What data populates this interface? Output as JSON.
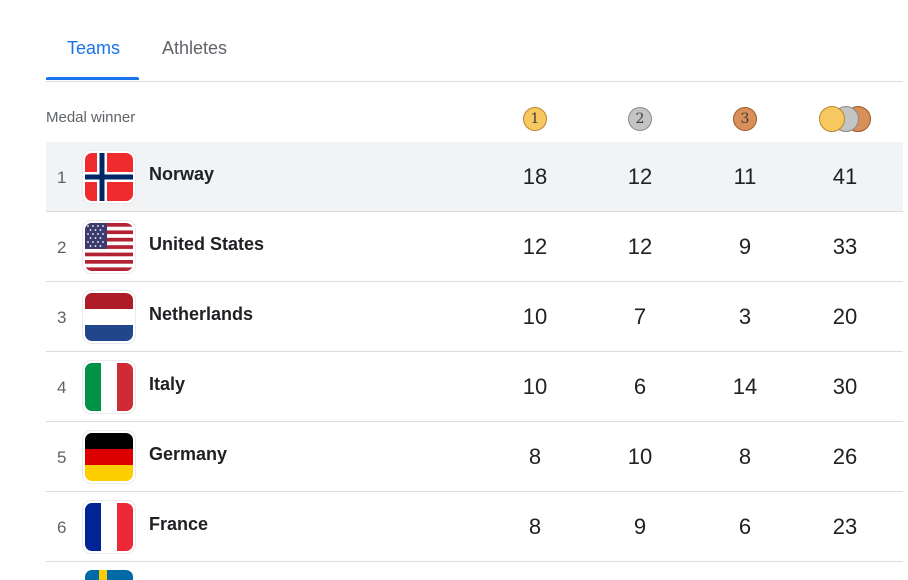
{
  "tabs": [
    {
      "label": "Teams",
      "selected": true
    },
    {
      "label": "Athletes",
      "selected": false
    }
  ],
  "header": {
    "label": "Medal winner",
    "gold_icon_text": "1",
    "silver_icon_text": "2",
    "bronze_icon_text": "3"
  },
  "colors": {
    "accent": "#1a73e8",
    "gold": "#f6c85f",
    "silver": "#c4c4c4",
    "bronze": "#d98f5a",
    "highlight_row": "#f1f3f4"
  },
  "rows": [
    {
      "rank": "1",
      "country": "Norway",
      "flag": "norway-flag",
      "gold": "18",
      "silver": "12",
      "bronze": "11",
      "total": "41"
    },
    {
      "rank": "2",
      "country": "United States",
      "flag": "usa-flag",
      "gold": "12",
      "silver": "12",
      "bronze": "9",
      "total": "33"
    },
    {
      "rank": "3",
      "country": "Netherlands",
      "flag": "netherlands-flag",
      "gold": "10",
      "silver": "7",
      "bronze": "3",
      "total": "20"
    },
    {
      "rank": "4",
      "country": "Italy",
      "flag": "italy-flag",
      "gold": "10",
      "silver": "6",
      "bronze": "14",
      "total": "30"
    },
    {
      "rank": "5",
      "country": "Germany",
      "flag": "germany-flag",
      "gold": "8",
      "silver": "10",
      "bronze": "8",
      "total": "26"
    },
    {
      "rank": "6",
      "country": "France",
      "flag": "france-flag",
      "gold": "8",
      "silver": "9",
      "bronze": "6",
      "total": "23"
    }
  ]
}
